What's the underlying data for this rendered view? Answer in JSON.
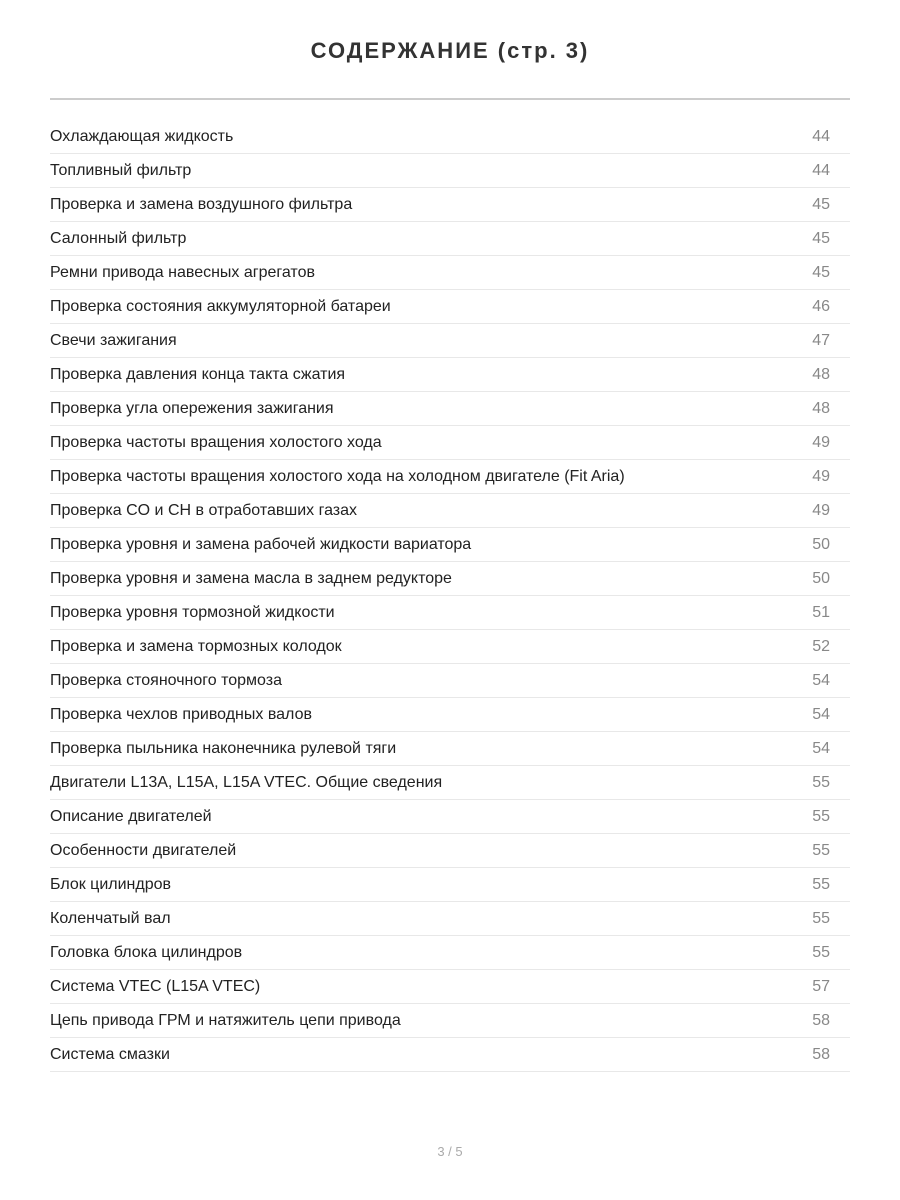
{
  "title": "СОДЕРЖАНИЕ (стр. 3)",
  "entries": [
    {
      "label": "Охлаждающая жидкость",
      "page": "44"
    },
    {
      "label": "Топливный фильтр",
      "page": "44"
    },
    {
      "label": "Проверка и замена воздушного фильтра",
      "page": "45"
    },
    {
      "label": "Салонный фильтр",
      "page": "45"
    },
    {
      "label": "Ремни привода навесных агрегатов",
      "page": "45"
    },
    {
      "label": "Проверка состояния аккумуляторной батареи",
      "page": "46"
    },
    {
      "label": "Свечи зажигания",
      "page": "47"
    },
    {
      "label": "Проверка давления конца такта сжатия",
      "page": "48"
    },
    {
      "label": "Проверка угла опережения зажигания",
      "page": "48"
    },
    {
      "label": "Проверка частоты вращения холостого хода",
      "page": "49"
    },
    {
      "label": "Проверка частоты вращения холостого хода на холодном двигателе (Fit Aria)",
      "page": "49"
    },
    {
      "label": "Проверка CO и CH в отработавших газах",
      "page": "49"
    },
    {
      "label": "Проверка уровня и замена рабочей жидкости вариатора",
      "page": "50"
    },
    {
      "label": "Проверка уровня и замена масла в заднем редукторе",
      "page": "50"
    },
    {
      "label": "Проверка уровня тормозной жидкости",
      "page": "51"
    },
    {
      "label": "Проверка и замена тормозных колодок",
      "page": "52"
    },
    {
      "label": "Проверка стояночного тормоза",
      "page": "54"
    },
    {
      "label": "Проверка чехлов приводных валов",
      "page": "54"
    },
    {
      "label": "Проверка пыльника наконечника рулевой тяги",
      "page": "54"
    },
    {
      "label": "Двигатели L13A, L15A, L15A VTEC. Общие сведения",
      "page": "55"
    },
    {
      "label": "Описание двигателей",
      "page": "55"
    },
    {
      "label": "Особенности двигателей",
      "page": "55"
    },
    {
      "label": "Блок цилиндров",
      "page": "55"
    },
    {
      "label": "Коленчатый вал",
      "page": "55"
    },
    {
      "label": "Головка блока цилиндров",
      "page": "55"
    },
    {
      "label": "Система VTEC (L15A VTEC)",
      "page": "57"
    },
    {
      "label": "Цепь привода ГРМ и натяжитель цепи привода",
      "page": "58"
    },
    {
      "label": "Система смазки",
      "page": "58"
    }
  ],
  "footer": "3 / 5"
}
